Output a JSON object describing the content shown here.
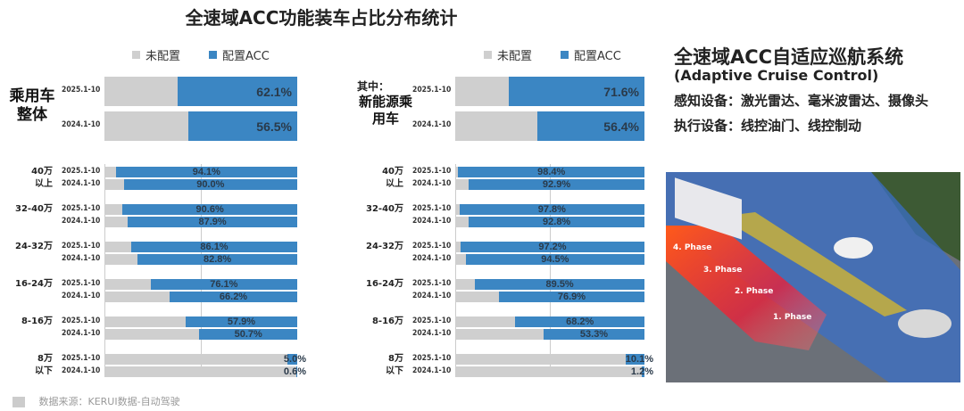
{
  "title": "全速域ACC功能装车占比分布统计",
  "legend": {
    "unconfigured": "未配置",
    "configured": "配置ACC"
  },
  "colors": {
    "unconfigured": "#cfcfcf",
    "configured": "#3b86c3"
  },
  "chart_data": [
    {
      "type": "bar",
      "stacked_percent": true,
      "group_label": "乘用车整体",
      "categories": [
        "2025.1-10",
        "2024.1-10"
      ],
      "series": [
        {
          "name": "配置ACC",
          "values": [
            62.1,
            56.5
          ]
        }
      ],
      "value_labels": [
        "62.1%",
        "56.5%"
      ],
      "xlim": [
        0,
        100
      ]
    },
    {
      "type": "bar",
      "stacked_percent": true,
      "groups": [
        {
          "label": [
            "40万",
            "以上"
          ],
          "dates": [
            "2025.1-10",
            "2024.1-10"
          ],
          "values": [
            94.1,
            90.0
          ],
          "labels": [
            "94.1%",
            "90.0%"
          ]
        },
        {
          "label": [
            "32-40万"
          ],
          "dates": [
            "2025.1-10",
            "2024.1-10"
          ],
          "values": [
            90.6,
            87.9
          ],
          "labels": [
            "90.6%",
            "87.9%"
          ]
        },
        {
          "label": [
            "24-32万"
          ],
          "dates": [
            "2025.1-10",
            "2024.1-10"
          ],
          "values": [
            86.1,
            82.8
          ],
          "labels": [
            "86.1%",
            "82.8%"
          ]
        },
        {
          "label": [
            "16-24万"
          ],
          "dates": [
            "2025.1-10",
            "2024.1-10"
          ],
          "values": [
            76.1,
            66.2
          ],
          "labels": [
            "76.1%",
            "66.2%"
          ]
        },
        {
          "label": [
            "8-16万"
          ],
          "dates": [
            "2025.1-10",
            "2024.1-10"
          ],
          "values": [
            57.9,
            50.7
          ],
          "labels": [
            "57.9%",
            "50.7%"
          ]
        },
        {
          "label": [
            "8万",
            "以下"
          ],
          "dates": [
            "2025.1-10",
            "2024.1-10"
          ],
          "values": [
            5.0,
            0.6
          ],
          "labels": [
            "5.0%",
            "0.6%"
          ]
        }
      ],
      "xlim": [
        0,
        100
      ]
    },
    {
      "type": "bar",
      "stacked_percent": true,
      "group_label_prefix": "其中：",
      "group_label": "新能源乘用车",
      "categories": [
        "2025.1-10",
        "2024.1-10"
      ],
      "series": [
        {
          "name": "配置ACC",
          "values": [
            71.6,
            56.4
          ]
        }
      ],
      "value_labels": [
        "71.6%",
        "56.4%"
      ],
      "xlim": [
        0,
        100
      ]
    },
    {
      "type": "bar",
      "stacked_percent": true,
      "groups": [
        {
          "label": [
            "40万",
            "以上"
          ],
          "dates": [
            "2025.1-10",
            "2024.1-10"
          ],
          "values": [
            98.4,
            92.9
          ],
          "labels": [
            "98.4%",
            "92.9%"
          ]
        },
        {
          "label": [
            "32-40万"
          ],
          "dates": [
            "2025.1-10",
            "2024.1-10"
          ],
          "values": [
            97.8,
            92.8
          ],
          "labels": [
            "97.8%",
            "92.8%"
          ]
        },
        {
          "label": [
            "24-32万"
          ],
          "dates": [
            "2025.1-10",
            "2024.1-10"
          ],
          "values": [
            97.2,
            94.5
          ],
          "labels": [
            "97.2%",
            "94.5%"
          ]
        },
        {
          "label": [
            "16-24万"
          ],
          "dates": [
            "2025.1-10",
            "2024.1-10"
          ],
          "values": [
            89.5,
            76.9
          ],
          "labels": [
            "89.5%",
            "76.9%"
          ]
        },
        {
          "label": [
            "8-16万"
          ],
          "dates": [
            "2025.1-10",
            "2024.1-10"
          ],
          "values": [
            68.2,
            53.3
          ],
          "labels": [
            "68.2%",
            "53.3%"
          ]
        },
        {
          "label": [
            "8万",
            "以下"
          ],
          "dates": [
            "2025.1-10",
            "2024.1-10"
          ],
          "values": [
            10.1,
            1.2
          ],
          "labels": [
            "10.1%",
            "1.2%"
          ]
        }
      ],
      "xlim": [
        0,
        100
      ]
    }
  ],
  "info": {
    "title": "全速域ACC自适应巡航系统",
    "subtitle": "(Adaptive Cruise Control)",
    "sensing": "感知设备：激光雷达、毫米波雷达、摄像头",
    "actuation": "执行设备：线控油门、线控制动"
  },
  "illustration": {
    "phases": [
      "4. Phase",
      "3. Phase",
      "2. Phase",
      "1. Phase"
    ]
  },
  "footer": {
    "source": "数据来源：KERUI数据-自动驾驶",
    "icon": "calendar-icon"
  }
}
